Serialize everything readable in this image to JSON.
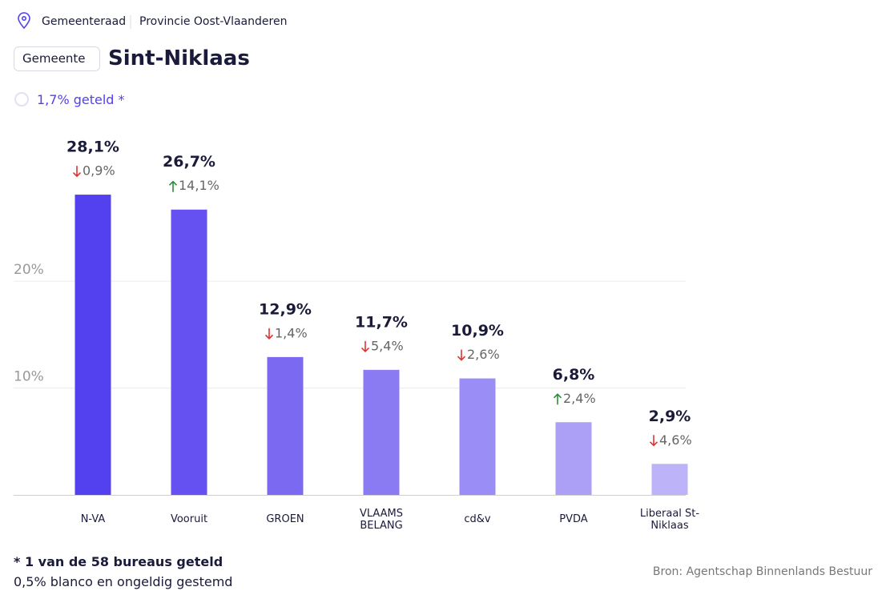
{
  "header": {
    "body": "Gemeenteraad",
    "province": "Provincie Oost-Vlaanderen",
    "level": "Gemeente",
    "title": "Sint-Niklaas",
    "counted": "1,7% geteld *"
  },
  "chart_data": {
    "type": "bar",
    "categories": [
      "N-VA",
      "Vooruit",
      "GROEN",
      "VLAAMS BELANG",
      "cd&v",
      "PVDA",
      "Liberaal St-Niklaas"
    ],
    "values": [
      28.1,
      26.7,
      12.9,
      11.7,
      10.9,
      6.8,
      2.9
    ],
    "value_labels": [
      "28,1%",
      "26,7%",
      "12,9%",
      "11,7%",
      "10,9%",
      "6,8%",
      "2,9%"
    ],
    "changes": [
      -0.9,
      14.1,
      -1.4,
      -5.4,
      -2.6,
      2.4,
      -4.6
    ],
    "change_labels": [
      "0,9%",
      "14,1%",
      "1,4%",
      "5,4%",
      "2,6%",
      "2,4%",
      "4,6%"
    ],
    "colors": [
      "#5340ee",
      "#6551f1",
      "#7b69f2",
      "#8a7bf3",
      "#9a8df5",
      "#ab9ff6",
      "#bcb3f8"
    ],
    "ylim": [
      0,
      35
    ],
    "yticks": [
      {
        "value": 10,
        "label": "10%"
      },
      {
        "value": 20,
        "label": "20%"
      }
    ],
    "grid": true
  },
  "footer": {
    "note": "* 1 van de 58 bureaus geteld",
    "blank": "0,5% blanco en ongeldig gestemd",
    "source": "Bron: Agentschap Binnenlands Bestuur"
  }
}
